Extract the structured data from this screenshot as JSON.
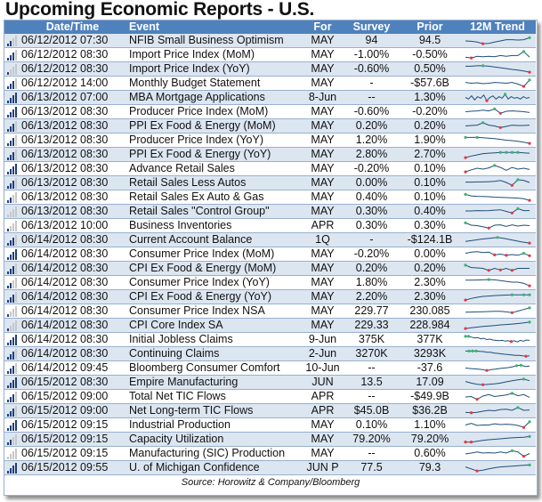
{
  "title": "Upcoming Economic Reports - U.S.",
  "headers": {
    "importance": "",
    "datetime": "Date/Time",
    "event": "Event",
    "for": "For",
    "survey": "Survey",
    "prior": "Prior",
    "trend": "12M Trend"
  },
  "colors": {
    "header_bg": "#4f81bd",
    "alt_row_bg": "#dce6f1",
    "spark_line": "#1f4e79",
    "spark_high": "#3cb371",
    "spark_low": "#e8363e",
    "importance_on": "#1f3f7a",
    "importance_off": "#c7c7c7"
  },
  "rows": [
    {
      "importance": 2,
      "datetime": "06/12/2012 07:30",
      "event": "NFIB Small Business Optimism",
      "for": "MAY",
      "survey": "94",
      "prior": "94.5",
      "trend": [
        0.45,
        0.4,
        0.3,
        0.1,
        0.15,
        0.3,
        0.45,
        0.6,
        0.6,
        0.55,
        0.6,
        0.85
      ],
      "trend_high": [
        11
      ],
      "trend_low": [
        3
      ]
    },
    {
      "importance": 3,
      "datetime": "06/12/2012 08:30",
      "event": "Import Price Index (MoM)",
      "for": "MAY",
      "survey": "-1.00%",
      "prior": "-0.50%",
      "trend": [
        0.2,
        0.1,
        0.3,
        0.25,
        0.3,
        0.25,
        0.4,
        0.3,
        0.4,
        0.4,
        0.9,
        0.2
      ],
      "trend_high": [
        10
      ],
      "trend_low": [
        1
      ]
    },
    {
      "importance": 1,
      "datetime": "06/12/2012 08:30",
      "event": "Import Price Index (YoY)",
      "for": "MAY",
      "survey": "-0.60%",
      "prior": "0.50%",
      "trend": [
        0.85,
        0.85,
        0.9,
        0.9,
        0.85,
        0.75,
        0.65,
        0.55,
        0.45,
        0.35,
        0.25,
        0.1
      ],
      "trend_high": [
        3
      ],
      "trend_low": [
        11
      ]
    },
    {
      "importance": 3,
      "datetime": "06/12/2012 14:00",
      "event": "Monthly Budget Statement",
      "for": "MAY",
      "survey": "-",
      "prior": "-$57.6B",
      "trend": [
        0.6,
        0.5,
        0.55,
        0.45,
        0.5,
        0.6,
        0.55,
        0.5,
        0.6,
        0.4,
        0.1,
        0.9
      ],
      "trend_high": [
        11
      ],
      "trend_low": [
        10
      ]
    },
    {
      "importance": 4,
      "datetime": "06/13/2012 07:00",
      "event": "MBA Mortgage Applications",
      "for": "8-Jun",
      "survey": "--",
      "prior": "1.30%",
      "trend": [
        0.5,
        0.3,
        0.7,
        0.2,
        0.6,
        0.4,
        0.8,
        0.1,
        0.5,
        0.7,
        0.3,
        0.6,
        0.4,
        0.9,
        0.3,
        0.6,
        0.4,
        0.5,
        0.3,
        0.6,
        0.4,
        0.5
      ],
      "trend_high": [
        13
      ],
      "trend_low": [
        7
      ]
    },
    {
      "importance": 4,
      "datetime": "06/13/2012 08:30",
      "event": "Producer Price Index (MoM)",
      "for": "MAY",
      "survey": "-0.60%",
      "prior": "-0.20%",
      "trend": [
        0.5,
        0.55,
        0.6,
        0.7,
        0.6,
        0.85,
        0.3,
        0.55,
        0.6,
        0.55,
        0.5,
        0.4
      ],
      "trend_high": [
        5
      ],
      "trend_low": [
        6
      ]
    },
    {
      "importance": 3,
      "datetime": "06/13/2012 08:30",
      "event": "PPI Ex Food & Energy (MoM)",
      "for": "MAY",
      "survey": "0.20%",
      "prior": "0.20%",
      "trend": [
        0.5,
        0.55,
        0.6,
        0.9,
        0.6,
        0.5,
        0.3,
        0.45,
        0.6,
        0.55,
        0.55,
        0.6
      ],
      "trend_high": [
        3
      ],
      "trend_low": [
        6
      ]
    },
    {
      "importance": 3,
      "datetime": "06/13/2012 08:30",
      "event": "Producer Price Index (YoY)",
      "for": "MAY",
      "survey": "1.20%",
      "prior": "1.90%",
      "trend": [
        0.85,
        0.85,
        0.85,
        0.8,
        0.75,
        0.7,
        0.6,
        0.5,
        0.45,
        0.35,
        0.25,
        0.1
      ],
      "trend_high": [
        0,
        2
      ],
      "trend_low": [
        11
      ]
    },
    {
      "importance": 3,
      "datetime": "06/13/2012 08:30",
      "event": "PPI Ex Food & Energy (YoY)",
      "for": "MAY",
      "survey": "2.80%",
      "prior": "2.70%",
      "trend": [
        0.1,
        0.3,
        0.45,
        0.6,
        0.65,
        0.7,
        0.75,
        0.75,
        0.75,
        0.75,
        0.7,
        0.65
      ],
      "trend_high": [
        6,
        7,
        8,
        9
      ],
      "trend_low": [
        0
      ]
    },
    {
      "importance": 4,
      "datetime": "06/13/2012 08:30",
      "event": "Advance Retail Sales",
      "for": "MAY",
      "survey": "-0.20%",
      "prior": "0.10%",
      "trend": [
        0.1,
        0.35,
        0.55,
        0.45,
        0.6,
        0.9,
        0.65,
        0.3,
        0.65,
        0.45,
        0.55,
        0.4
      ],
      "trend_high": [
        5
      ],
      "trend_low": [
        0
      ]
    },
    {
      "importance": 3,
      "datetime": "06/13/2012 08:30",
      "event": "Retail Sales Less Autos",
      "for": "MAY",
      "survey": "0.00%",
      "prior": "0.10%",
      "trend": [
        0.6,
        0.6,
        0.62,
        0.62,
        0.65,
        0.7,
        0.8,
        0.55,
        0.2,
        0.9,
        0.8,
        0.55
      ],
      "trend_high": [
        9
      ],
      "trend_low": [
        8
      ]
    },
    {
      "importance": 2,
      "datetime": "06/13/2012 08:30",
      "event": "Retail Sales Ex Auto & Gas",
      "for": "MAY",
      "survey": "0.40%",
      "prior": "0.10%",
      "trend": [
        0.85,
        0.65,
        0.6,
        0.58,
        0.55,
        0.5,
        0.48,
        0.45,
        0.42,
        0.38,
        0.3,
        0.1
      ],
      "trend_high": [
        0
      ],
      "trend_low": [
        11
      ]
    },
    {
      "importance": 0,
      "datetime": "06/13/2012 08:30",
      "event": "Retail Sales \"Control Group\"",
      "for": "MAY",
      "survey": "0.30%",
      "prior": "0.40%",
      "trend": [
        0.55,
        0.55,
        0.6,
        0.58,
        0.6,
        0.65,
        0.7,
        0.5,
        0.3,
        0.85,
        0.6,
        0.6
      ],
      "trend_high": [
        9
      ],
      "trend_low": [
        8
      ]
    },
    {
      "importance": 1,
      "datetime": "06/13/2012 10:00",
      "event": "Business Inventories",
      "for": "APR",
      "survey": "0.30%",
      "prior": "0.30%",
      "trend": [
        0.85,
        0.55,
        0.5,
        0.35,
        0.2,
        0.55,
        0.6,
        0.4,
        0.6,
        0.45,
        0.55,
        0.5
      ],
      "trend_high": [
        0
      ],
      "trend_low": [
        4
      ]
    },
    {
      "importance": 3,
      "datetime": "06/14/2012 08:30",
      "event": "Current Account Balance",
      "for": "1Q",
      "survey": "-",
      "prior": "-$124.1B",
      "trend": [
        0.3,
        0.45,
        0.6,
        0.7,
        0.8,
        0.65,
        0.45,
        0.25,
        0.1
      ],
      "trend_high": [
        4
      ],
      "trend_low": [
        8
      ]
    },
    {
      "importance": 4,
      "datetime": "06/14/2012 08:30",
      "event": "Consumer Price Index (MoM)",
      "for": "MAY",
      "survey": "-0.20%",
      "prior": "0.00%",
      "trend": [
        0.6,
        0.75,
        0.8,
        0.7,
        0.75,
        0.4,
        0.5,
        0.35,
        0.45,
        0.35,
        0.6,
        0.3
      ],
      "trend_high": [
        10
      ],
      "trend_low": [
        5,
        7,
        11
      ]
    },
    {
      "importance": 3,
      "datetime": "06/14/2012 08:30",
      "event": "CPI Ex Food & Energy (MoM)",
      "for": "MAY",
      "survey": "0.20%",
      "prior": "0.20%",
      "trend": [
        0.9,
        0.6,
        0.55,
        0.5,
        0.25,
        0.5,
        0.3,
        0.5,
        0.25,
        0.5,
        0.5,
        0.5
      ],
      "trend_high": [
        0
      ],
      "trend_low": [
        4,
        6,
        8
      ]
    },
    {
      "importance": 2,
      "datetime": "06/14/2012 08:30",
      "event": "Consumer Price Index (YoY)",
      "for": "MAY",
      "survey": "1.80%",
      "prior": "2.30%",
      "trend": [
        0.8,
        0.8,
        0.82,
        0.85,
        0.88,
        0.85,
        0.75,
        0.65,
        0.55,
        0.55,
        0.4,
        0.1
      ],
      "trend_high": [
        4
      ],
      "trend_low": [
        11
      ]
    },
    {
      "importance": 3,
      "datetime": "06/14/2012 08:30",
      "event": "CPI Ex Food & Energy (YoY)",
      "for": "MAY",
      "survey": "2.20%",
      "prior": "2.30%",
      "trend": [
        0.1,
        0.3,
        0.45,
        0.55,
        0.6,
        0.65,
        0.7,
        0.72,
        0.75,
        0.75,
        0.75,
        0.75
      ],
      "trend_high": [
        8,
        10,
        11
      ],
      "trend_low": [
        0
      ]
    },
    {
      "importance": 1,
      "datetime": "06/14/2012 08:30",
      "event": "Consumer Price Index NSA",
      "for": "MAY",
      "survey": "229.77",
      "prior": "230.085",
      "trend": [
        0.35,
        0.38,
        0.4,
        0.42,
        0.45,
        0.47,
        0.48,
        0.4,
        0.3,
        0.5,
        0.7,
        0.9
      ],
      "trend_high": [
        11
      ],
      "trend_low": [
        8
      ]
    },
    {
      "importance": 1,
      "datetime": "06/14/2012 08:30",
      "event": "CPI Core Index SA",
      "for": "MAY",
      "survey": "229.33",
      "prior": "228.984",
      "trend": [
        0.1,
        0.2,
        0.28,
        0.35,
        0.42,
        0.48,
        0.55,
        0.6,
        0.66,
        0.72,
        0.8,
        0.9
      ],
      "trend_high": [
        11
      ],
      "trend_low": [
        0
      ]
    },
    {
      "importance": 4,
      "datetime": "06/14/2012 08:30",
      "event": "Initial Jobless Claims",
      "for": "9-Jun",
      "survey": "375K",
      "prior": "377K",
      "trend": [
        0.9,
        0.9,
        0.8,
        0.7,
        0.75,
        0.6,
        0.65,
        0.5,
        0.55,
        0.45,
        0.4,
        0.35,
        0.4,
        0.3,
        0.35,
        0.25,
        0.35,
        0.2,
        0.4,
        0.3,
        0.45,
        0.4
      ],
      "trend_high": [
        0,
        1
      ],
      "trend_low": [
        15
      ]
    },
    {
      "importance": 3,
      "datetime": "06/14/2012 08:30",
      "event": "Continuing Claims",
      "for": "2-Jun",
      "survey": "3270K",
      "prior": "3293K",
      "trend": [
        0.85,
        0.85,
        0.85,
        0.85,
        0.8,
        0.78,
        0.7,
        0.7,
        0.6,
        0.55,
        0.5,
        0.45,
        0.4,
        0.35,
        0.3,
        0.3,
        0.25,
        0.2,
        0.25
      ],
      "trend_high": [
        1,
        2,
        3
      ],
      "trend_low": [
        17
      ]
    },
    {
      "importance": 3,
      "datetime": "06/14/2012 09:45",
      "event": "Bloomberg Consumer Comfort",
      "for": "10-Jun",
      "survey": "--",
      "prior": "-37.6",
      "trend": [
        0.5,
        0.45,
        0.4,
        0.35,
        0.3,
        0.2,
        0.3,
        0.35,
        0.45,
        0.5,
        0.55,
        0.65,
        0.8,
        0.85,
        0.7,
        0.75
      ],
      "trend_high": [
        12,
        13
      ],
      "trend_low": [
        5
      ]
    },
    {
      "importance": 4,
      "datetime": "06/15/2012 08:30",
      "event": "Empire Manufacturing",
      "for": "JUN",
      "survey": "13.5",
      "prior": "17.09",
      "trend": [
        0.6,
        0.4,
        0.25,
        0.2,
        0.25,
        0.3,
        0.4,
        0.55,
        0.7,
        0.8,
        0.9,
        0.7
      ],
      "trend_high": [
        10
      ],
      "trend_low": [
        3
      ]
    },
    {
      "importance": 3,
      "datetime": "06/15/2012 09:00",
      "event": "Total Net TIC Flows",
      "for": "APR",
      "survey": "--",
      "prior": "-$49.9B",
      "trend": [
        0.45,
        0.5,
        0.15,
        0.55,
        0.75,
        0.5,
        0.6,
        0.7,
        0.9,
        0.6,
        0.75,
        0.4
      ],
      "trend_high": [
        8
      ],
      "trend_low": [
        2
      ]
    },
    {
      "importance": 3,
      "datetime": "06/15/2012 09:00",
      "event": "Net Long-term TIC Flows",
      "for": "APR",
      "survey": "$45.0B",
      "prior": "$36.2B",
      "trend": [
        0.3,
        0.25,
        0.3,
        0.45,
        0.55,
        0.5,
        0.65,
        0.7,
        0.55,
        0.9,
        0.55,
        0.6
      ],
      "trend_high": [
        9
      ],
      "trend_low": [
        1
      ]
    },
    {
      "importance": 4,
      "datetime": "06/15/2012 09:15",
      "event": "Industrial Production",
      "for": "MAY",
      "survey": "0.10%",
      "prior": "1.10%",
      "trend": [
        0.5,
        0.7,
        0.45,
        0.5,
        0.5,
        0.65,
        0.55,
        0.6,
        0.55,
        0.45,
        0.2,
        0.9
      ],
      "trend_high": [
        11
      ],
      "trend_low": [
        10
      ]
    },
    {
      "importance": 2,
      "datetime": "06/15/2012 09:15",
      "event": "Capacity Utilization",
      "for": "MAY",
      "survey": "79.20%",
      "prior": "79.20%",
      "trend": [
        0.15,
        0.15,
        0.25,
        0.35,
        0.45,
        0.5,
        0.55,
        0.62,
        0.68,
        0.72,
        0.75,
        0.85
      ],
      "trend_high": [
        11
      ],
      "trend_low": [
        0,
        1
      ]
    },
    {
      "importance": 0,
      "datetime": "06/15/2012 09:15",
      "event": "Manufacturing (SIC) Production",
      "for": "MAY",
      "survey": "--",
      "prior": "0.60%",
      "trend": [
        0.45,
        0.55,
        0.7,
        0.55,
        0.6,
        0.55,
        0.7,
        0.55,
        0.85,
        0.7,
        0.15,
        0.5
      ],
      "trend_high": [
        8
      ],
      "trend_low": [
        10
      ]
    },
    {
      "importance": 4,
      "datetime": "06/15/2012 09:55",
      "event": "U. of Michigan Confidence",
      "for": "JUN P",
      "survey": "77.5",
      "prior": "79.3",
      "trend": [
        0.6,
        0.35,
        0.1,
        0.2,
        0.35,
        0.5,
        0.6,
        0.65,
        0.7,
        0.75,
        0.8,
        0.85
      ],
      "trend_high": [
        11
      ],
      "trend_low": [
        2
      ]
    }
  ],
  "source": "Source: Horowitz & Company/Bloomberg"
}
